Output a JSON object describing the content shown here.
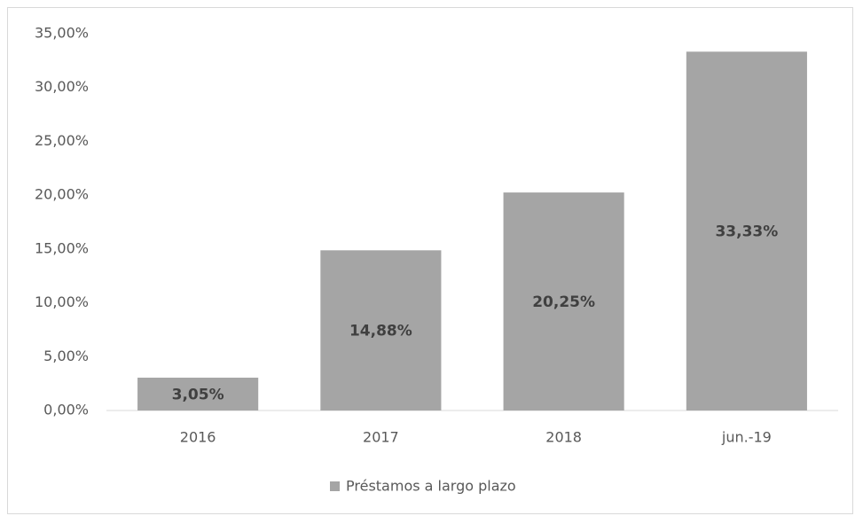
{
  "chart_data": {
    "type": "bar",
    "categories": [
      "2016",
      "2017",
      "2018",
      "jun.-19"
    ],
    "series": [
      {
        "name": "Préstamos a largo plazo",
        "color": "#a5a5a5",
        "values": [
          3.05,
          14.88,
          20.25,
          33.33
        ],
        "value_labels": [
          "3,05%",
          "14,88%",
          "20,25%",
          "33,33%"
        ]
      }
    ],
    "ylim": [
      0,
      35
    ],
    "yticks": [
      {
        "value": 0,
        "label": "0,00%"
      },
      {
        "value": 5,
        "label": "5,00%"
      },
      {
        "value": 10,
        "label": "10,00%"
      },
      {
        "value": 15,
        "label": "15,00%"
      },
      {
        "value": 20,
        "label": "20,00%"
      },
      {
        "value": 25,
        "label": "25,00%"
      },
      {
        "value": 30,
        "label": "30,00%"
      },
      {
        "value": 35,
        "label": "35,00%"
      }
    ],
    "grid": false,
    "legend": "bottom"
  }
}
